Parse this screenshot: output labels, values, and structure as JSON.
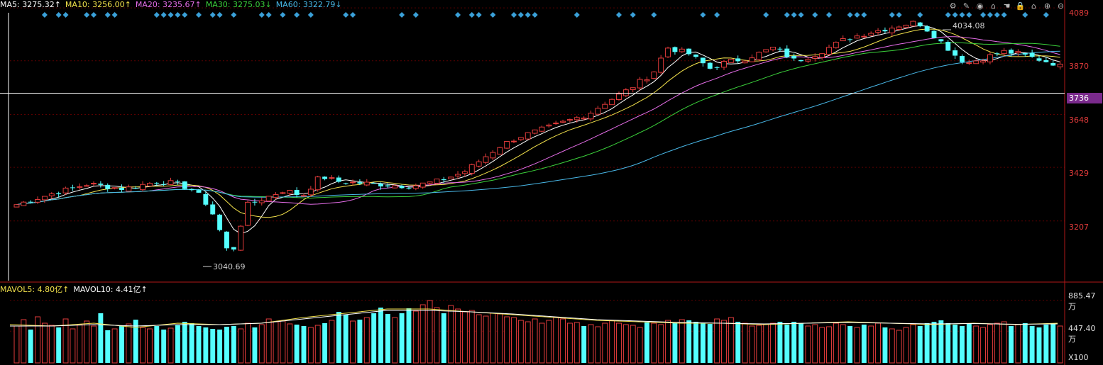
{
  "ma_legend": {
    "ma5": {
      "label": "MA5: 3275.32↑",
      "color": "#ffffff"
    },
    "ma10": {
      "label": "MA10: 3256.00↑",
      "color": "#f2e14b"
    },
    "ma20": {
      "label": "MA20: 3235.67↑",
      "color": "#e56de8"
    },
    "ma30": {
      "label": "MA30: 3275.03↓",
      "color": "#3bd13b"
    },
    "ma60": {
      "label": "MA60: 3322.79↓",
      "color": "#49b8e8"
    }
  },
  "vol_legend": {
    "mavol5": {
      "label": "MAVOL5: 4.80亿↑",
      "color": "#f2e14b"
    },
    "mavol10": {
      "label": "MAVOL10: 4.41亿↑",
      "color": "#ffffff"
    }
  },
  "toolbar": {
    "icons": [
      "gear-icon",
      "pencil-icon",
      "eye-icon",
      "bank-icon",
      "hand-icon",
      "lock-icon",
      "home-icon",
      "zoom-in-icon",
      "zoom-out-icon"
    ],
    "glyphs": [
      "⚙",
      "✎",
      "◉",
      "⌂",
      "☚",
      "🔒",
      "⌂",
      "⊕",
      "⊖"
    ]
  },
  "price_axis": {
    "ticks": [
      "4089",
      "3870",
      "3648",
      "3429",
      "3207"
    ],
    "cursor_value": "3736"
  },
  "volume_axis": {
    "ticks": [
      "885.47万",
      "447.40万",
      "X100"
    ]
  },
  "annotations": {
    "high": "4034.08",
    "low": "3040.69"
  },
  "colors": {
    "up": "#e23b3b",
    "down": "#54ffff",
    "grid": "#5a0000",
    "axis": "#b01818",
    "signal": "#3aa0d8"
  },
  "chart_data": {
    "type": "candlestick",
    "ylim": [
      2960,
      4110
    ],
    "y_ticks": [
      3207,
      3429,
      3648,
      3870,
      4089
    ],
    "cursor_y": 3736,
    "bar_count": 150,
    "close_path": [
      [
        0,
        3275
      ],
      [
        10,
        3320
      ],
      [
        20,
        3360
      ],
      [
        30,
        3340
      ],
      [
        40,
        3372
      ],
      [
        45,
        3360
      ],
      [
        50,
        3330
      ],
      [
        53,
        3280
      ],
      [
        56,
        3210
      ],
      [
        58,
        3110
      ],
      [
        60,
        3060
      ],
      [
        62,
        3150
      ],
      [
        64,
        3270
      ],
      [
        70,
        3305
      ],
      [
        75,
        3335
      ],
      [
        80,
        3310
      ],
      [
        85,
        3392
      ],
      [
        90,
        3370
      ],
      [
        100,
        3360
      ],
      [
        110,
        3350
      ],
      [
        118,
        3372
      ],
      [
        125,
        3408
      ],
      [
        130,
        3460
      ],
      [
        135,
        3515
      ],
      [
        140,
        3552
      ],
      [
        150,
        3600
      ],
      [
        160,
        3650
      ],
      [
        165,
        3700
      ],
      [
        170,
        3740
      ],
      [
        178,
        3818
      ],
      [
        182,
        3925
      ],
      [
        188,
        3900
      ],
      [
        194,
        3838
      ],
      [
        198,
        3862
      ],
      [
        204,
        3880
      ],
      [
        212,
        3925
      ],
      [
        218,
        3868
      ],
      [
        224,
        3900
      ],
      [
        232,
        3960
      ],
      [
        238,
        3985
      ],
      [
        244,
        4005
      ],
      [
        248,
        4020
      ],
      [
        252,
        4030
      ],
      [
        256,
        3985
      ],
      [
        260,
        3930
      ],
      [
        263,
        3888
      ],
      [
        266,
        3860
      ],
      [
        272,
        3888
      ],
      [
        276,
        3908
      ],
      [
        280,
        3900
      ],
      [
        285,
        3880
      ],
      [
        290,
        3860
      ],
      [
        292,
        3848
      ]
    ],
    "path_x_max": 292,
    "volume": {
      "ylim": [
        0,
        1000
      ],
      "ticks": [
        447.4,
        885.47
      ],
      "pattern": [
        520,
        610,
        470,
        650,
        560,
        530,
        500,
        620,
        480,
        540,
        590,
        520,
        700,
        460,
        480,
        520,
        550,
        610,
        500,
        480,
        520,
        470,
        490,
        530,
        580,
        560,
        520,
        500,
        480,
        470,
        510,
        520,
        480,
        560,
        500,
        540,
        620,
        580,
        590,
        550,
        540,
        520,
        500,
        530,
        560,
        600,
        720,
        680,
        590,
        610,
        640,
        700,
        780,
        690,
        640,
        700,
        770,
        730,
        820,
        880,
        780,
        700,
        810,
        760,
        720,
        740,
        680,
        660,
        700,
        690,
        650,
        640,
        600,
        580,
        620,
        560,
        600,
        640,
        620,
        560,
        570,
        520,
        540,
        510,
        560,
        600,
        560,
        540,
        530,
        500,
        570,
        560,
        540,
        600,
        560,
        610,
        600,
        580,
        560,
        550,
        620,
        600,
        640,
        580,
        560,
        520,
        530,
        540,
        560,
        580,
        540,
        580,
        560,
        520,
        540,
        500,
        510,
        560,
        540,
        520,
        500,
        540,
        520,
        560,
        500,
        480,
        460,
        500,
        540,
        520,
        560,
        580,
        600,
        560,
        540,
        520,
        560,
        520,
        500,
        540,
        560,
        580,
        520,
        540,
        560,
        520,
        500,
        540,
        560,
        520
      ],
      "mavol5_path": [
        [
          0,
          540
        ],
        [
          20,
          520
        ],
        [
          40,
          560
        ],
        [
          60,
          500
        ],
        [
          80,
          560
        ],
        [
          100,
          540
        ],
        [
          120,
          560
        ],
        [
          140,
          640
        ],
        [
          160,
          700
        ],
        [
          180,
          760
        ],
        [
          200,
          760
        ],
        [
          220,
          720
        ],
        [
          240,
          680
        ],
        [
          260,
          640
        ],
        [
          280,
          600
        ],
        [
          300,
          580
        ],
        [
          320,
          560
        ],
        [
          340,
          560
        ],
        [
          360,
          540
        ],
        [
          380,
          560
        ],
        [
          400,
          580
        ],
        [
          420,
          560
        ],
        [
          440,
          540
        ],
        [
          460,
          560
        ],
        [
          480,
          540
        ],
        [
          500,
          560
        ]
      ],
      "mavol10_path": [
        [
          0,
          520
        ],
        [
          20,
          520
        ],
        [
          40,
          540
        ],
        [
          60,
          520
        ],
        [
          80,
          540
        ],
        [
          100,
          540
        ],
        [
          120,
          560
        ],
        [
          140,
          620
        ],
        [
          160,
          680
        ],
        [
          180,
          740
        ],
        [
          200,
          740
        ],
        [
          220,
          720
        ],
        [
          240,
          690
        ],
        [
          260,
          650
        ],
        [
          280,
          610
        ],
        [
          300,
          590
        ],
        [
          320,
          570
        ],
        [
          340,
          560
        ],
        [
          360,
          550
        ],
        [
          380,
          560
        ],
        [
          400,
          570
        ],
        [
          420,
          560
        ],
        [
          440,
          550
        ],
        [
          460,
          555
        ],
        [
          480,
          545
        ],
        [
          500,
          550
        ]
      ]
    }
  }
}
